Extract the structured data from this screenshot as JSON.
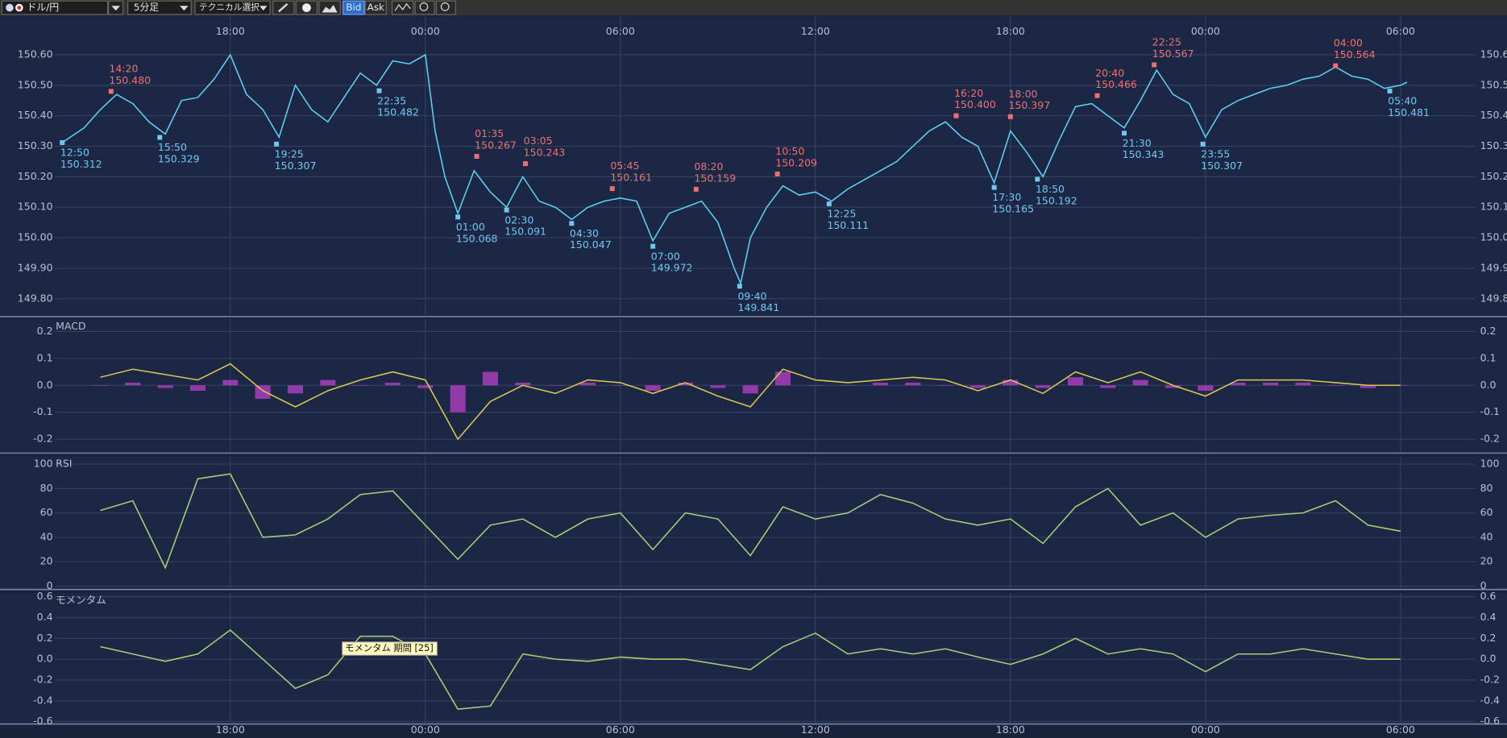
{
  "toolbar": {
    "pair": "ドル/円",
    "timeframe": "5分足",
    "technical": "テクニカル選択",
    "bid": "Bid",
    "ask": "Ask"
  },
  "chart_data": [
    {
      "type": "line",
      "color": "#5fd0f0",
      "xlim": [
        -5.4,
        38.3
      ],
      "xticks": [
        {
          "value": 0,
          "label": "18:00"
        },
        {
          "value": 6,
          "label": "00:00"
        },
        {
          "value": 12,
          "label": "06:00"
        },
        {
          "value": 18,
          "label": "12:00"
        },
        {
          "value": 24,
          "label": "18:00"
        },
        {
          "value": 30,
          "label": "00:00"
        },
        {
          "value": 36,
          "label": "06:00"
        }
      ],
      "ylim": [
        149.746,
        150.726
      ],
      "yticks": [
        {
          "value": 150.6,
          "label": "150.60"
        },
        {
          "value": 150.5,
          "label": "150.50"
        },
        {
          "value": 150.4,
          "label": "150.40"
        },
        {
          "value": 150.3,
          "label": "150.30"
        },
        {
          "value": 150.2,
          "label": "150.20"
        },
        {
          "value": 150.1,
          "label": "150.10"
        },
        {
          "value": 150.0,
          "label": "150.00"
        },
        {
          "value": 149.9,
          "label": "149.90"
        },
        {
          "value": 149.8,
          "label": "149.80"
        }
      ],
      "x": [
        -5.2,
        -4.5,
        -4,
        -3.5,
        -3,
        -2.5,
        -2,
        -1.5,
        -1,
        -0.5,
        0,
        0.5,
        1,
        1.5,
        2,
        2.5,
        3,
        3.5,
        4,
        4.5,
        5,
        5.5,
        6,
        6.3,
        6.6,
        7,
        7.5,
        8,
        8.5,
        9,
        9.5,
        10,
        10.5,
        11,
        11.5,
        12,
        12.5,
        13,
        13.5,
        14,
        14.5,
        15,
        15.5,
        15.7,
        16,
        16.5,
        17,
        17.5,
        18,
        18.5,
        19,
        19.5,
        20,
        20.5,
        21,
        21.5,
        22,
        22.5,
        23,
        23.5,
        24,
        24.5,
        25,
        25.5,
        26,
        26.5,
        27,
        27.5,
        28,
        28.5,
        29,
        29.5,
        30,
        30.5,
        31,
        31.5,
        32,
        32.5,
        33,
        33.5,
        34,
        34.5,
        35,
        35.5,
        36,
        36.2
      ],
      "values": [
        150.31,
        150.36,
        150.42,
        150.47,
        150.44,
        150.38,
        150.34,
        150.45,
        150.46,
        150.52,
        150.6,
        150.47,
        150.42,
        150.33,
        150.5,
        150.42,
        150.38,
        150.46,
        150.54,
        150.5,
        150.58,
        150.57,
        150.6,
        150.35,
        150.2,
        150.08,
        150.22,
        150.15,
        150.1,
        150.2,
        150.12,
        150.1,
        150.06,
        150.1,
        150.12,
        150.13,
        150.12,
        149.99,
        150.08,
        150.1,
        150.12,
        150.05,
        149.9,
        149.85,
        150,
        150.1,
        150.17,
        150.14,
        150.15,
        150.12,
        150.16,
        150.19,
        150.22,
        150.25,
        150.3,
        150.35,
        150.38,
        150.33,
        150.3,
        150.18,
        150.35,
        150.28,
        150.2,
        150.32,
        150.43,
        150.44,
        150.4,
        150.36,
        150.45,
        150.55,
        150.47,
        150.44,
        150.33,
        150.42,
        150.45,
        150.47,
        150.49,
        150.5,
        150.52,
        150.53,
        150.56,
        150.53,
        150.52,
        150.49,
        150.5,
        150.51
      ],
      "high_color": "#f07070",
      "low_color": "#70c8f0",
      "highs": [
        {
          "time": "14:20",
          "label": "150.480",
          "value": 150.48,
          "x": -3.67
        },
        {
          "time": "01:35",
          "label": "150.267",
          "value": 150.267,
          "x": 7.58
        },
        {
          "time": "03:05",
          "label": "150.243",
          "value": 150.243,
          "x": 9.08
        },
        {
          "time": "05:45",
          "label": "150.161",
          "value": 150.161,
          "x": 11.75
        },
        {
          "time": "08:20",
          "label": "150.159",
          "value": 150.159,
          "x": 14.33
        },
        {
          "time": "10:50",
          "label": "150.209",
          "value": 150.209,
          "x": 16.83
        },
        {
          "time": "16:20",
          "label": "150.400",
          "value": 150.4,
          "x": 22.33
        },
        {
          "time": "18:00",
          "label": "150.397",
          "value": 150.397,
          "x": 24
        },
        {
          "time": "20:40",
          "label": "150.466",
          "value": 150.466,
          "x": 26.67
        },
        {
          "time": "22:25",
          "label": "150.567",
          "value": 150.567,
          "x": 28.42
        },
        {
          "time": "04:00",
          "label": "150.564",
          "value": 150.564,
          "x": 34
        }
      ],
      "lows": [
        {
          "time": "12:50",
          "label": "150.312",
          "value": 150.312,
          "x": -5.17
        },
        {
          "time": "15:50",
          "label": "150.329",
          "value": 150.329,
          "x": -2.17
        },
        {
          "time": "19:25",
          "label": "150.307",
          "value": 150.307,
          "x": 1.42
        },
        {
          "time": "22:35",
          "label": "150.482",
          "value": 150.482,
          "x": 4.58
        },
        {
          "time": "01:00",
          "label": "150.068",
          "value": 150.068,
          "x": 7
        },
        {
          "time": "02:30",
          "label": "150.091",
          "value": 150.091,
          "x": 8.5
        },
        {
          "time": "04:30",
          "label": "150.047",
          "value": 150.047,
          "x": 10.5
        },
        {
          "time": "07:00",
          "label": "149.972",
          "value": 149.972,
          "x": 13
        },
        {
          "time": "09:40",
          "label": "149.841",
          "value": 149.841,
          "x": 15.67
        },
        {
          "time": "12:25",
          "label": "150.111",
          "value": 150.111,
          "x": 18.42
        },
        {
          "time": "17:30",
          "label": "150.165",
          "value": 150.165,
          "x": 23.5
        },
        {
          "time": "18:50",
          "label": "150.192",
          "value": 150.192,
          "x": 24.83
        },
        {
          "time": "21:30",
          "label": "150.343",
          "value": 150.343,
          "x": 27.5
        },
        {
          "time": "23:55",
          "label": "150.307",
          "value": 150.307,
          "x": 29.92
        },
        {
          "time": "05:40",
          "label": "150.481",
          "value": 150.481,
          "x": 35.67
        }
      ]
    },
    {
      "type": "line",
      "title": "MACD",
      "xlim": [
        -5.4,
        38.3
      ],
      "xticks": [
        {
          "value": 0,
          "label": "18:00"
        },
        {
          "value": 6,
          "label": "00:00"
        },
        {
          "value": 12,
          "label": "06:00"
        },
        {
          "value": 18,
          "label": "12:00"
        },
        {
          "value": 24,
          "label": "18:00"
        },
        {
          "value": 30,
          "label": "00:00"
        },
        {
          "value": 36,
          "label": "06:00"
        }
      ],
      "ylim": [
        -0.246,
        0.246
      ],
      "yticks": [
        0.2,
        0.1,
        {
          "value": 0,
          "label": "0.0"
        },
        -0.1,
        -0.2
      ],
      "x": [
        -4,
        -3,
        -2,
        -1,
        0,
        1,
        2,
        3,
        4,
        5,
        6,
        7,
        8,
        9,
        10,
        11,
        12,
        13,
        14,
        15,
        16,
        17,
        18,
        19,
        20,
        21,
        22,
        23,
        24,
        25,
        26,
        27,
        28,
        29,
        30,
        31,
        32,
        33,
        34,
        35,
        36
      ],
      "series": [
        {
          "type": "bar",
          "color": "#b040c0",
          "values": [
            0,
            0.01,
            -0.01,
            -0.02,
            0.02,
            -0.05,
            -0.03,
            0.02,
            0,
            0.01,
            -0.01,
            -0.1,
            0.05,
            0.01,
            0,
            0.01,
            0,
            -0.02,
            0.01,
            -0.01,
            -0.03,
            0.05,
            0,
            0,
            0.01,
            0.01,
            0,
            -0.01,
            0.02,
            -0.01,
            0.03,
            -0.01,
            0.02,
            -0.01,
            -0.02,
            0.01,
            0.01,
            0.01,
            0,
            -0.01,
            0
          ]
        },
        {
          "type": "line",
          "color": "#d8c850",
          "values": [
            0.03,
            0.06,
            0.04,
            0.02,
            0.08,
            -0.02,
            -0.08,
            -0.02,
            0.02,
            0.05,
            0.02,
            -0.2,
            -0.06,
            0,
            -0.03,
            0.02,
            0.01,
            -0.03,
            0.01,
            -0.04,
            -0.08,
            0.06,
            0.02,
            0.01,
            0.02,
            0.03,
            0.02,
            -0.02,
            0.02,
            -0.03,
            0.05,
            0.01,
            0.05,
            0,
            -0.04,
            0.02,
            0.02,
            0.02,
            0.01,
            0,
            0
          ]
        }
      ]
    },
    {
      "type": "line",
      "title": "RSI",
      "color": "#a8d070",
      "xlim": [
        -5.4,
        38.3
      ],
      "xticks": [
        {
          "value": 0,
          "label": "18:00"
        },
        {
          "value": 6,
          "label": "00:00"
        },
        {
          "value": 12,
          "label": "06:00"
        },
        {
          "value": 18,
          "label": "12:00"
        },
        {
          "value": 24,
          "label": "18:00"
        },
        {
          "value": 30,
          "label": "00:00"
        },
        {
          "value": 36,
          "label": "06:00"
        }
      ],
      "ylim": [
        -1.6,
        106.3
      ],
      "yticks": [
        100,
        80,
        60,
        40,
        20,
        0
      ],
      "x": [
        -4,
        -3,
        -2,
        -1,
        0,
        1,
        2,
        3,
        4,
        5,
        6,
        7,
        8,
        9,
        10,
        11,
        12,
        13,
        14,
        15,
        16,
        17,
        18,
        19,
        20,
        21,
        22,
        23,
        24,
        25,
        26,
        27,
        28,
        29,
        30,
        31,
        32,
        33,
        34,
        35,
        36
      ],
      "values": [
        62,
        70,
        15,
        88,
        92,
        40,
        42,
        55,
        75,
        78,
        50,
        22,
        50,
        55,
        40,
        55,
        60,
        30,
        60,
        55,
        25,
        65,
        55,
        60,
        75,
        68,
        55,
        50,
        55,
        35,
        65,
        80,
        50,
        60,
        40,
        55,
        58,
        60,
        70,
        50,
        45
      ]
    },
    {
      "type": "line",
      "title": "モメンタム",
      "color": "#a8d070",
      "tooltip": "モメンタム 期間 [25]",
      "xlim": [
        -5.4,
        38.3
      ],
      "xticks": [
        {
          "value": 0,
          "label": "18:00"
        },
        {
          "value": 6,
          "label": "00:00"
        },
        {
          "value": 12,
          "label": "06:00"
        },
        {
          "value": 18,
          "label": "12:00"
        },
        {
          "value": 24,
          "label": "18:00"
        },
        {
          "value": 30,
          "label": "00:00"
        },
        {
          "value": 36,
          "label": "06:00"
        }
      ],
      "ylim": [
        -0.609,
        0.637
      ],
      "yticks": [
        0.6,
        0.4,
        0.2,
        {
          "value": 0,
          "label": "0.0"
        },
        -0.2,
        -0.4,
        -0.6
      ],
      "x": [
        -4,
        -3,
        -2,
        -1,
        0,
        1,
        2,
        3,
        4,
        5,
        6,
        7,
        8,
        9,
        10,
        11,
        12,
        13,
        14,
        15,
        16,
        17,
        18,
        19,
        20,
        21,
        22,
        23,
        24,
        25,
        26,
        27,
        28,
        29,
        30,
        31,
        32,
        33,
        34,
        35,
        36
      ],
      "values": [
        0.12,
        0.05,
        -0.02,
        0.05,
        0.28,
        0,
        -0.28,
        -0.15,
        0.22,
        0.22,
        0.05,
        -0.48,
        -0.45,
        0.05,
        0,
        -0.02,
        0.02,
        0,
        0,
        -0.05,
        -0.1,
        0.12,
        0.25,
        0.05,
        0.1,
        0.05,
        0.1,
        0.02,
        -0.05,
        0.05,
        0.2,
        0.05,
        0.1,
        0.05,
        -0.12,
        0.05,
        0.05,
        0.1,
        0.05,
        0,
        0
      ]
    }
  ]
}
